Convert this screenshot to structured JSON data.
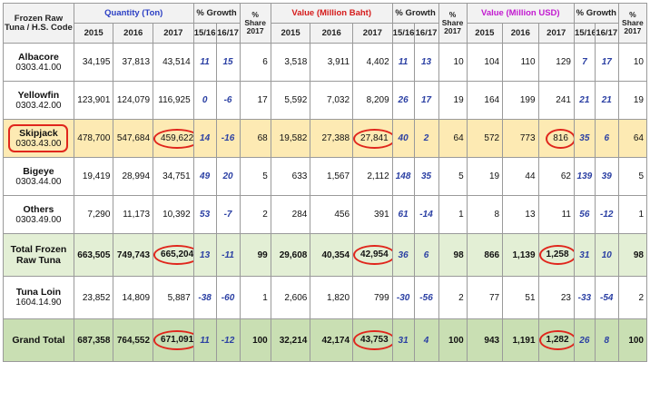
{
  "header": {
    "category_label": "Frozen Raw Tuna / H.S. Code",
    "groups": {
      "quantity": "Quantity (Ton)",
      "value_baht": "Value (Million Baht)",
      "value_usd": "Value (Million USD)",
      "growth": "% Growth",
      "share": "% Share 2017"
    },
    "years": [
      "2015",
      "2016",
      "2017"
    ],
    "growth_cols": [
      "15/16",
      "16/17"
    ]
  },
  "rows": [
    {
      "name": "Albacore",
      "code": "0303.41.00",
      "q": [
        "34,195",
        "37,813",
        "43,514"
      ],
      "qg": [
        "11",
        "15"
      ],
      "qs": "6",
      "b": [
        "3,518",
        "3,911",
        "4,402"
      ],
      "bg": [
        "11",
        "13"
      ],
      "bs": "10",
      "u": [
        "104",
        "110",
        "129"
      ],
      "ug": [
        "7",
        "17"
      ],
      "us": "10"
    },
    {
      "name": "Yellowfin",
      "code": "0303.42.00",
      "q": [
        "123,901",
        "124,079",
        "116,925"
      ],
      "qg": [
        "0",
        "-6"
      ],
      "qs": "17",
      "b": [
        "5,592",
        "7,032",
        "8,209"
      ],
      "bg": [
        "26",
        "17"
      ],
      "bs": "19",
      "u": [
        "164",
        "199",
        "241"
      ],
      "ug": [
        "21",
        "21"
      ],
      "us": "19"
    },
    {
      "name": "Skipjack",
      "code": "0303.43.00",
      "q": [
        "478,700",
        "547,684",
        "459,622"
      ],
      "qg": [
        "14",
        "-16"
      ],
      "qs": "68",
      "b": [
        "19,582",
        "27,388",
        "27,841"
      ],
      "bg": [
        "40",
        "2"
      ],
      "bs": "64",
      "u": [
        "572",
        "773",
        "816"
      ],
      "ug": [
        "35",
        "6"
      ],
      "us": "64"
    },
    {
      "name": "Bigeye",
      "code": "0303.44.00",
      "q": [
        "19,419",
        "28,994",
        "34,751"
      ],
      "qg": [
        "49",
        "20"
      ],
      "qs": "5",
      "b": [
        "633",
        "1,567",
        "2,112"
      ],
      "bg": [
        "148",
        "35"
      ],
      "bs": "5",
      "u": [
        "19",
        "44",
        "62"
      ],
      "ug": [
        "139",
        "39"
      ],
      "us": "5"
    },
    {
      "name": "Others",
      "code": "0303.49.00",
      "q": [
        "7,290",
        "11,173",
        "10,392"
      ],
      "qg": [
        "53",
        "-7"
      ],
      "qs": "2",
      "b": [
        "284",
        "456",
        "391"
      ],
      "bg": [
        "61",
        "-14"
      ],
      "bs": "1",
      "u": [
        "8",
        "13",
        "11"
      ],
      "ug": [
        "56",
        "-12"
      ],
      "us": "1"
    },
    {
      "name": "Total Frozen Raw Tuna",
      "code": "",
      "q": [
        "663,505",
        "749,743",
        "665,204"
      ],
      "qg": [
        "13",
        "-11"
      ],
      "qs": "99",
      "b": [
        "29,608",
        "40,354",
        "42,954"
      ],
      "bg": [
        "36",
        "6"
      ],
      "bs": "98",
      "u": [
        "866",
        "1,139",
        "1,258"
      ],
      "ug": [
        "31",
        "10"
      ],
      "us": "98"
    },
    {
      "name": "Tuna Loin",
      "code": "1604.14.90",
      "q": [
        "23,852",
        "14,809",
        "5,887"
      ],
      "qg": [
        "-38",
        "-60"
      ],
      "qs": "1",
      "b": [
        "2,606",
        "1,820",
        "799"
      ],
      "bg": [
        "-30",
        "-56"
      ],
      "bs": "2",
      "u": [
        "77",
        "51",
        "23"
      ],
      "ug": [
        "-33",
        "-54"
      ],
      "us": "2"
    },
    {
      "name": "Grand Total",
      "code": "",
      "q": [
        "687,358",
        "764,552",
        "671,091"
      ],
      "qg": [
        "11",
        "-12"
      ],
      "qs": "100",
      "b": [
        "32,214",
        "42,174",
        "43,753"
      ],
      "bg": [
        "31",
        "4"
      ],
      "bs": "100",
      "u": [
        "943",
        "1,191",
        "1,282"
      ],
      "ug": [
        "26",
        "8"
      ],
      "us": "100"
    }
  ],
  "colors": {
    "highlight_row": "#fdeab3",
    "total_row": "#e3efd5",
    "grand_total_row": "#c9dfb3",
    "circle": "#e0261c",
    "growth_text": "#2a3fa3"
  }
}
